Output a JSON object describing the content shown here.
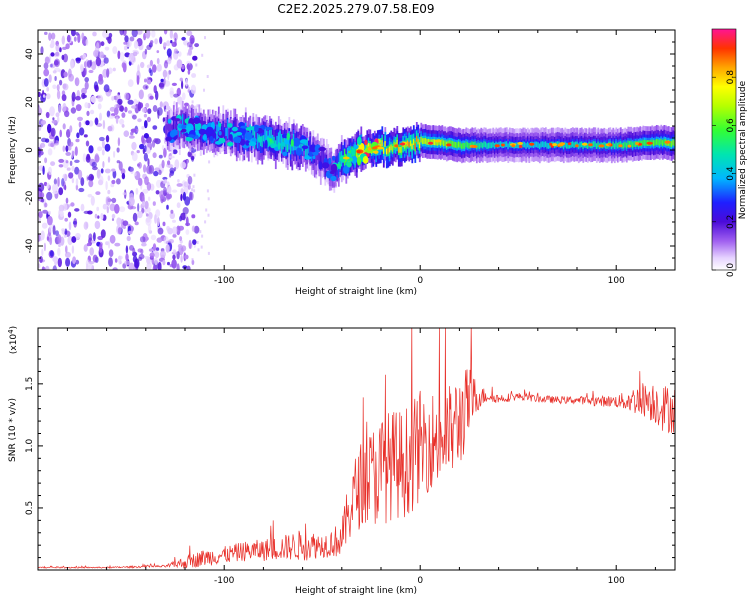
{
  "title": "C2E2.2025.279.07.58.E09",
  "colors": {
    "signal": "#e8302a",
    "axis": "#000000",
    "low": "#8a2be2"
  },
  "chart_data": [
    {
      "type": "heatmap",
      "name": "spectrogram",
      "xlabel": "Height of straight line (km)",
      "ylabel": "Frequency (Hz)",
      "xlim": [
        -195,
        130
      ],
      "ylim": [
        -50,
        50
      ],
      "xticks": [
        -100,
        0,
        100
      ],
      "xtick_labels": [
        "-100",
        "0",
        "100"
      ],
      "yticks": [
        -40,
        -20,
        0,
        20,
        40
      ],
      "ytick_labels": [
        "-40",
        "-20",
        "0",
        "20",
        "40"
      ],
      "colorbar": {
        "label": "Normalized spectral amplitude",
        "range": [
          0.0,
          1.0
        ],
        "ticks": [
          0.0,
          0.2,
          0.4,
          0.6,
          0.8
        ],
        "tick_labels": [
          "0.0",
          "0.2",
          "0.4",
          "0.6",
          "0.8"
        ]
      },
      "ridge": {
        "note": "dominant frequency (Hz) vs height (km)",
        "x": [
          -130,
          -120,
          -110,
          -100,
          -90,
          -80,
          -70,
          -60,
          -50,
          -45,
          -40,
          -35,
          -30,
          -20,
          -10,
          0,
          10,
          20,
          40,
          60,
          80,
          100,
          120,
          130
        ],
        "y": [
          9,
          9,
          8,
          7,
          6,
          5,
          3,
          1,
          -4,
          -8,
          -5,
          -2,
          0,
          1,
          2,
          4,
          3,
          2,
          2,
          2,
          2,
          2,
          3,
          3
        ],
        "amplitude": [
          0.3,
          0.4,
          0.35,
          0.4,
          0.45,
          0.45,
          0.5,
          0.45,
          0.35,
          0.3,
          0.55,
          0.7,
          0.8,
          0.85,
          0.85,
          0.9,
          0.85,
          0.75,
          0.55,
          0.55,
          0.6,
          0.65,
          0.75,
          0.8
        ]
      },
      "noise_region_x": [
        -195,
        -120
      ]
    },
    {
      "type": "line",
      "name": "snr",
      "xlabel": "Height of straight line (km)",
      "ylabel": "SNR (10 * v/v)",
      "y_multiplier": "(x10",
      "y_multiplier_exp": "4",
      "y_multiplier_close": ")",
      "xlim": [
        -195,
        130
      ],
      "ylim": [
        0,
        1.95
      ],
      "xticks": [
        -100,
        0,
        100
      ],
      "xtick_labels": [
        "-100",
        "0",
        "100"
      ],
      "yticks": [
        0.5,
        1.0,
        1.5
      ],
      "ytick_labels": [
        "0.5",
        "1.0",
        "1.5"
      ],
      "series": [
        {
          "name": "SNR",
          "x": [
            -195,
            -160,
            -130,
            -120,
            -110,
            -100,
            -90,
            -80,
            -70,
            -60,
            -50,
            -45,
            -40,
            -35,
            -30,
            -25,
            -20,
            -15,
            -10,
            -5,
            0,
            5,
            10,
            15,
            20,
            25,
            30,
            35,
            40,
            50,
            60,
            70,
            80,
            90,
            100,
            105,
            110,
            115,
            120,
            125,
            130
          ],
          "y": [
            0.02,
            0.02,
            0.03,
            0.06,
            0.1,
            0.12,
            0.15,
            0.16,
            0.18,
            0.2,
            0.2,
            0.22,
            0.25,
            0.55,
            0.7,
            0.75,
            0.8,
            0.85,
            0.85,
            0.9,
            1.0,
            1.05,
            1.05,
            1.1,
            1.2,
            1.35,
            1.4,
            1.4,
            1.38,
            1.4,
            1.38,
            1.37,
            1.37,
            1.36,
            1.36,
            1.36,
            1.37,
            1.38,
            1.35,
            1.3,
            1.3
          ],
          "noise": [
            0.005,
            0.005,
            0.01,
            0.05,
            0.07,
            0.07,
            0.08,
            0.09,
            0.1,
            0.13,
            0.1,
            0.12,
            0.15,
            0.3,
            0.35,
            0.4,
            0.45,
            0.45,
            0.45,
            0.45,
            0.45,
            0.4,
            0.4,
            0.4,
            0.4,
            0.3,
            0.1,
            0.04,
            0.04,
            0.03,
            0.03,
            0.03,
            0.03,
            0.04,
            0.05,
            0.08,
            0.12,
            0.15,
            0.18,
            0.2,
            0.2
          ]
        }
      ]
    }
  ]
}
